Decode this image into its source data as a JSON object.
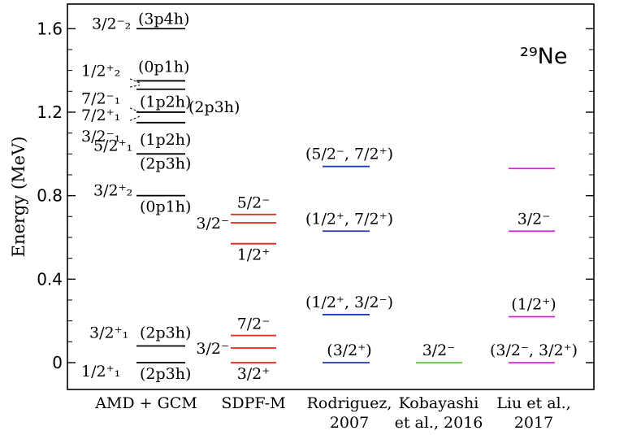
{
  "chart_data": {
    "type": "level-scheme",
    "title": "²⁹Ne",
    "ylabel": "Energy (MeV)",
    "ylim": [
      -0.1,
      1.7
    ],
    "yticks": [
      {
        "value": 0,
        "label": "0"
      },
      {
        "value": 0.4,
        "label": "0.4"
      },
      {
        "value": 0.8,
        "label": "0.8"
      },
      {
        "value": 1.2,
        "label": "1.2"
      },
      {
        "value": 1.6,
        "label": "1.6"
      }
    ],
    "columns": [
      {
        "name": "AMD + GCM",
        "name_lines": [
          "AMD + GCM"
        ],
        "color": "#000000",
        "levels": [
          {
            "energy": 0.0,
            "jp": "1/2⁺₁",
            "config": "(2p3h)"
          },
          {
            "energy": 0.08,
            "jp": "3/2⁺₁",
            "config": "(2p3h)"
          },
          {
            "energy": 0.8,
            "jp": "3/2⁺₂",
            "config": "(0p1h)"
          },
          {
            "energy": 1.0,
            "jp": "5/2⁺₁",
            "config": "(2p3h)"
          },
          {
            "energy": 1.15,
            "jp": "3/2⁻₁",
            "config": "(1p2h)"
          },
          {
            "energy": 1.2,
            "jp": "7/2⁺₁",
            "config": "(2p3h)"
          },
          {
            "energy": 1.31,
            "jp": "7/2⁻₁",
            "config": "(1p2h)"
          },
          {
            "energy": 1.35,
            "jp": "1/2⁺₂",
            "config": "(0p1h)"
          },
          {
            "energy": 1.6,
            "jp": "3/2⁻₂",
            "config": "(3p4h)"
          }
        ]
      },
      {
        "name": "SDPF-M",
        "name_lines": [
          "SDPF-M"
        ],
        "color": "#e8251b",
        "levels": [
          {
            "energy": 0.0,
            "jp": "3/2⁺"
          },
          {
            "energy": 0.07,
            "jp": "3/2⁻"
          },
          {
            "energy": 0.13,
            "jp": "7/2⁻"
          },
          {
            "energy": 0.57,
            "jp": "1/2⁺"
          },
          {
            "energy": 0.67,
            "jp": "3/2⁻"
          },
          {
            "energy": 0.71,
            "jp": "5/2⁻"
          }
        ]
      },
      {
        "name": "Rodriguez, 2007",
        "name_lines": [
          "Rodriguez,",
          "2007"
        ],
        "color": "#1d3bb5",
        "levels": [
          {
            "energy": 0.0,
            "jp": "(3/2⁺)"
          },
          {
            "energy": 0.23,
            "jp": "(1/2⁺, 3/2⁻)"
          },
          {
            "energy": 0.63,
            "jp": "(1/2⁺, 7/2⁺)"
          },
          {
            "energy": 0.94,
            "jp": "(5/2⁻, 7/2⁺)"
          }
        ]
      },
      {
        "name": "Kobayashi et al., 2016",
        "name_lines": [
          "Kobayashi",
          "et al., 2016"
        ],
        "color": "#5ec335",
        "levels": [
          {
            "energy": 0.0,
            "jp": "3/2⁻"
          }
        ]
      },
      {
        "name": "Liu et al., 2017",
        "name_lines": [
          "Liu et al.,",
          "2017"
        ],
        "color": "#e11de0",
        "levels": [
          {
            "energy": 0.0,
            "jp": "(3/2⁻, 3/2⁺)"
          },
          {
            "energy": 0.22,
            "jp": "(1/2⁺)"
          },
          {
            "energy": 0.63,
            "jp": "3/2⁻"
          },
          {
            "energy": 0.93,
            "jp": ""
          }
        ]
      }
    ]
  }
}
